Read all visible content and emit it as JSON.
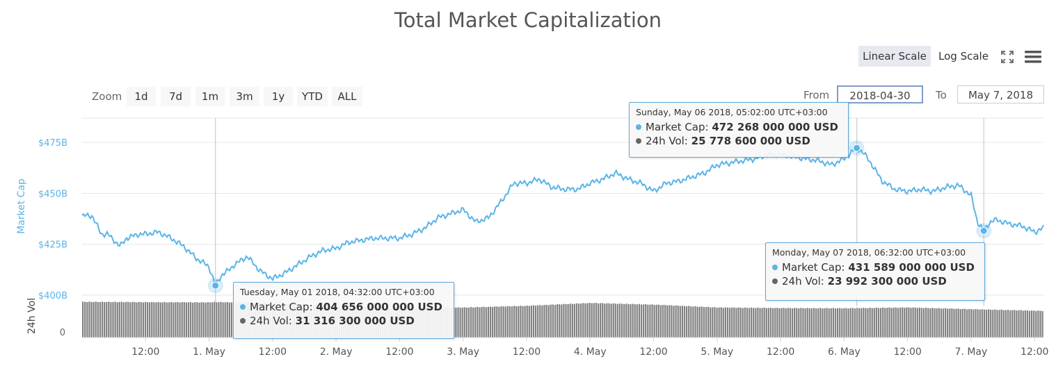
{
  "title": "Total Market Capitalization",
  "scale_buttons": {
    "linear": "Linear Scale",
    "log": "Log Scale"
  },
  "zoom": {
    "label": "Zoom",
    "buttons": [
      "1d",
      "7d",
      "1m",
      "3m",
      "1y",
      "YTD",
      "ALL"
    ]
  },
  "range": {
    "from_label": "From",
    "from_value": "2018-04-30",
    "to_label": "To",
    "to_value": "May 7, 2018"
  },
  "colors": {
    "market_cap": "#5ab4e6",
    "volume": "#808080",
    "axis_label": "#5ab4e6",
    "grid": "#e6e6e6"
  },
  "icons": {
    "fullscreen": "fullscreen-icon",
    "menu": "hamburger-menu-icon"
  },
  "tooltips": [
    {
      "date": "Tuesday, May 01 2018, 04:32:00 UTC+03:00",
      "cap_label": "Market Cap:",
      "cap_value": "404 656 000 000 USD",
      "vol_label": "24h Vol:",
      "vol_value": "31 316 300 000 USD"
    },
    {
      "date": "Sunday, May 06 2018, 05:02:00 UTC+03:00",
      "cap_label": "Market Cap:",
      "cap_value": "472 268 000 000 USD",
      "vol_label": "24h Vol:",
      "vol_value": "25 778 600 000 USD"
    },
    {
      "date": "Monday, May 07 2018, 06:32:00 UTC+03:00",
      "cap_label": "Market Cap:",
      "cap_value": "431 589 000 000 USD",
      "vol_label": "24h Vol:",
      "vol_value": "23 992 300 000 USD"
    }
  ],
  "chart_data": {
    "type": "line",
    "title": "Total Market Capitalization",
    "ylabel": "Market Cap",
    "ylabel2": "24h Vol",
    "ylim": [
      400,
      487
    ],
    "y_ticks": [
      400,
      425,
      450,
      475
    ],
    "y_tick_labels": [
      "$400B",
      "$425B",
      "$450B",
      "$475B"
    ],
    "y2_tick_labels": [
      "0"
    ],
    "x_tick_labels": [
      "12:00",
      "1. May",
      "12:00",
      "2. May",
      "12:00",
      "3. May",
      "12:00",
      "4. May",
      "12:00",
      "5. May",
      "12:00",
      "6. May",
      "12:00",
      "7. May",
      "12:00"
    ],
    "x_ticks_days": [
      0.5,
      1,
      1.5,
      2,
      2.5,
      3,
      3.5,
      4,
      4.5,
      5,
      5.5,
      6,
      6.5,
      7,
      7.5
    ],
    "xlim_days": [
      0.0,
      7.57
    ],
    "grid": true,
    "series": [
      {
        "name": "Market Cap",
        "unit": "billion USD",
        "x_days": [
          0.0,
          0.08,
          0.15,
          0.2,
          0.3,
          0.35,
          0.45,
          0.5,
          0.6,
          0.7,
          0.8,
          0.9,
          1.0,
          1.05,
          1.1,
          1.15,
          1.2,
          1.3,
          1.4,
          1.5,
          1.6,
          1.7,
          1.8,
          1.9,
          2.0,
          2.1,
          2.2,
          2.3,
          2.4,
          2.5,
          2.6,
          2.7,
          2.8,
          2.9,
          3.0,
          3.1,
          3.2,
          3.3,
          3.4,
          3.5,
          3.6,
          3.7,
          3.8,
          3.9,
          4.0,
          4.1,
          4.2,
          4.3,
          4.4,
          4.5,
          4.6,
          4.7,
          4.8,
          4.9,
          5.0,
          5.1,
          5.2,
          5.3,
          5.4,
          5.5,
          5.6,
          5.7,
          5.8,
          5.9,
          6.0,
          6.1,
          6.15,
          6.2,
          6.3,
          6.4,
          6.5,
          6.6,
          6.7,
          6.8,
          6.9,
          7.0,
          7.05,
          7.1,
          7.15,
          7.2,
          7.3,
          7.4,
          7.5,
          7.57
        ],
        "values": [
          439,
          439,
          430,
          430,
          424,
          428,
          430,
          430,
          431,
          428,
          424,
          418,
          414,
          404.7,
          410,
          412,
          415,
          419,
          412,
          408,
          411,
          415,
          419,
          422,
          423,
          426,
          427,
          428,
          428,
          428,
          430,
          433,
          438,
          440,
          442,
          436,
          438,
          446,
          455,
          455,
          457,
          453,
          452,
          452,
          455,
          457,
          460,
          457,
          455,
          451,
          455,
          456,
          458,
          460,
          464,
          465,
          466,
          467,
          469,
          469,
          468,
          467,
          466,
          464,
          467,
          472.3,
          470,
          466,
          456,
          452,
          451,
          452,
          451,
          453,
          454,
          449,
          436,
          431.6,
          436,
          437,
          435,
          434,
          431,
          433
        ]
      },
      {
        "name": "24h Vol",
        "unit": "billion USD",
        "x_days": [
          0.0,
          0.5,
          1.0,
          1.03,
          1.5,
          2.0,
          2.5,
          3.0,
          3.5,
          4.0,
          4.5,
          5.0,
          5.5,
          6.0,
          6.5,
          7.0,
          7.57
        ],
        "values": [
          31.5,
          31.2,
          31.0,
          31.3,
          30.5,
          27.5,
          26.0,
          26.5,
          28.0,
          30.5,
          29.0,
          26.5,
          26.0,
          25.8,
          26.5,
          25.0,
          23.5
        ]
      }
    ]
  }
}
